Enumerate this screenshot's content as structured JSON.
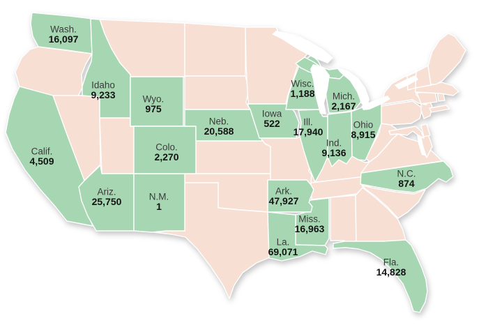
{
  "map": {
    "description": "United States choropleth map with highlighted states and labeled values",
    "colors": {
      "highlight": "#a6d7b2",
      "base": "#f7dfd3",
      "border": "#ffffff",
      "state_name_text": "#3b3b3b",
      "value_text": "#141414",
      "water": "#ffffff",
      "background": "#ffffff"
    },
    "labeled_states": [
      {
        "id": "washington",
        "name": "Wash.",
        "value": "16,097"
      },
      {
        "id": "idaho",
        "name": "Idaho",
        "value": "9,233"
      },
      {
        "id": "wyoming",
        "name": "Wyo.",
        "value": "975"
      },
      {
        "id": "california",
        "name": "Calif.",
        "value": "4,509"
      },
      {
        "id": "arizona",
        "name": "Ariz.",
        "value": "25,750"
      },
      {
        "id": "new-mexico",
        "name": "N.M.",
        "value": "1"
      },
      {
        "id": "colorado",
        "name": "Colo.",
        "value": "2,270"
      },
      {
        "id": "nebraska",
        "name": "Neb.",
        "value": "20,588"
      },
      {
        "id": "iowa",
        "name": "Iowa",
        "value": "522"
      },
      {
        "id": "wisconsin",
        "name": "Wisc.",
        "value": "1,188"
      },
      {
        "id": "michigan",
        "name": "Mich.",
        "value": "2,167"
      },
      {
        "id": "illinois",
        "name": "Ill.",
        "value": "17,940"
      },
      {
        "id": "indiana",
        "name": "Ind.",
        "value": "9,136"
      },
      {
        "id": "ohio",
        "name": "Ohio",
        "value": "8,915"
      },
      {
        "id": "north-carolina",
        "name": "N.C.",
        "value": "874"
      },
      {
        "id": "arkansas",
        "name": "Ark.",
        "value": "47,927"
      },
      {
        "id": "mississippi",
        "name": "Miss.",
        "value": "16,963"
      },
      {
        "id": "louisiana",
        "name": "La.",
        "value": "69,071"
      },
      {
        "id": "florida",
        "name": "Fla.",
        "value": "14,828"
      }
    ],
    "unlabeled_states": [
      "oregon",
      "nevada",
      "utah",
      "montana",
      "north-dakota",
      "south-dakota",
      "kansas",
      "oklahoma",
      "texas",
      "minnesota",
      "missouri",
      "kentucky",
      "tennessee",
      "alabama",
      "georgia",
      "south-carolina",
      "virginia",
      "virginia-eastern-shore",
      "west-virginia",
      "maryland",
      "delaware",
      "pennsylvania",
      "new-jersey",
      "new-york",
      "long-island",
      "connecticut",
      "rhode-island",
      "massachusetts",
      "vermont",
      "new-hampshire",
      "maine"
    ]
  },
  "chart_data": {
    "type": "heatmap",
    "subtype": "choropleth-us-map",
    "categories": [
      "Wash.",
      "Idaho",
      "Wyo.",
      "Calif.",
      "Ariz.",
      "N.M.",
      "Colo.",
      "Neb.",
      "Iowa",
      "Wisc.",
      "Mich.",
      "Ill.",
      "Ind.",
      "Ohio",
      "N.C.",
      "Ark.",
      "Miss.",
      "La.",
      "Fla."
    ],
    "values": [
      16097,
      9233,
      975,
      4509,
      25750,
      1,
      2270,
      20588,
      522,
      1188,
      2167,
      17940,
      9136,
      8915,
      874,
      47927,
      16963,
      69071,
      14828
    ],
    "title": "",
    "legend_position": "none",
    "notes": "Green-filled states carry labels and values; all other states are unhighlighted pale pink."
  }
}
